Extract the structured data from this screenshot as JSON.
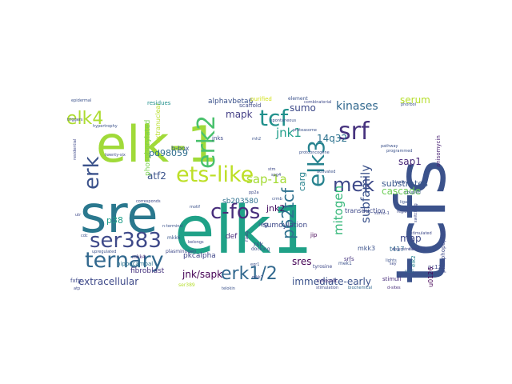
{
  "words": [
    {
      "text": "elk-1",
      "color": "#a0da39"
    },
    {
      "text": "elk1",
      "color": "#1fa187"
    },
    {
      "text": "tcfs",
      "color": "#3b528b"
    },
    {
      "text": "sre",
      "color": "#2a788e"
    },
    {
      "text": "ets-like",
      "color": "#bddf26"
    },
    {
      "text": "ternary",
      "color": "#31688e"
    },
    {
      "text": "ser383",
      "color": "#3e4989"
    },
    {
      "text": "elk4",
      "color": "#addc30"
    },
    {
      "text": "erk2",
      "color": "#4ac16d"
    },
    {
      "text": "tcf",
      "color": "#21918c"
    },
    {
      "text": "srf",
      "color": "#46327e"
    },
    {
      "text": "elk3",
      "color": "#26828e"
    },
    {
      "text": "erk",
      "color": "#3b528b"
    },
    {
      "text": "c-fos",
      "color": "#472d7b"
    },
    {
      "text": "p62tcf",
      "color": "#2d708e"
    },
    {
      "text": "mek",
      "color": "#3e4989"
    },
    {
      "text": "erk1/2",
      "color": "#31688e"
    },
    {
      "text": "mitogen",
      "color": "#35b779"
    },
    {
      "text": "subfamily",
      "color": "#3b528b"
    },
    {
      "text": "sap-1a",
      "color": "#a5db36"
    },
    {
      "text": "jnk1",
      "color": "#1f9e89"
    },
    {
      "text": "kinases",
      "color": "#31688e"
    },
    {
      "text": "mapk",
      "color": "#433e85"
    },
    {
      "text": "jnk/sapk",
      "color": "#440154"
    },
    {
      "text": "extracellular",
      "color": "#3e4989"
    },
    {
      "text": "immediate-early",
      "color": "#3b528b"
    },
    {
      "text": "14q32",
      "color": "#2c728e"
    },
    {
      "text": "serum",
      "color": "#b5de2b"
    },
    {
      "text": "sumo",
      "color": "#3e4a89"
    },
    {
      "text": "cascade",
      "color": "#6ece58"
    },
    {
      "text": "sap1",
      "color": "#482878"
    },
    {
      "text": "sres",
      "color": "#440154"
    },
    {
      "text": "substrates",
      "color": "#38588c"
    },
    {
      "text": "pd98059",
      "color": "#2e6e8e"
    },
    {
      "text": "atf2",
      "color": "#3b528b"
    },
    {
      "text": "p38",
      "color": "#1f9e89"
    },
    {
      "text": "map",
      "color": "#3e4989"
    },
    {
      "text": "jnk2",
      "color": "#471164"
    },
    {
      "text": "carg",
      "color": "#26828e"
    },
    {
      "text": "phosphorylated",
      "color": "#7ad151"
    },
    {
      "text": "extranuclear",
      "color": "#b8de29"
    },
    {
      "text": "sb203580",
      "color": "#2d708e"
    },
    {
      "text": "sumoylation",
      "color": "#3e4989"
    },
    {
      "text": "alphavbeta6",
      "color": "#3b528b"
    },
    {
      "text": "residues",
      "color": "#21908d"
    },
    {
      "text": "scaffold",
      "color": "#3e4a89"
    },
    {
      "text": "element",
      "color": "#3b528b"
    },
    {
      "text": "purified",
      "color": "#d2e21b"
    },
    {
      "text": "transduction",
      "color": "#3e4989"
    },
    {
      "text": "stimuli",
      "color": "#472c7a"
    },
    {
      "text": "phosphopeptide",
      "color": "#3e4989"
    },
    {
      "text": "anisomycin",
      "color": "#482173"
    },
    {
      "text": "pkcalpha",
      "color": "#404688"
    },
    {
      "text": "fibroblast",
      "color": "#46337e"
    },
    {
      "text": "hippocampal",
      "color": "#2c728e"
    },
    {
      "text": "b-box",
      "color": "#39568c"
    },
    {
      "text": "jnks",
      "color": "#3e4989"
    },
    {
      "text": "def",
      "color": "#472c7a"
    },
    {
      "text": "ieg",
      "color": "#3b528b"
    },
    {
      "text": "rsk",
      "color": "#3e4a89"
    },
    {
      "text": "rasg",
      "color": "#443983"
    },
    {
      "text": "jip",
      "color": "#440154"
    },
    {
      "text": "srfs",
      "color": "#46337e"
    },
    {
      "text": "mkk3",
      "color": "#3b528b"
    },
    {
      "text": "t417",
      "color": "#31688e"
    },
    {
      "text": "elk2",
      "color": "#26828e"
    },
    {
      "text": "pc12",
      "color": "#3e4989"
    },
    {
      "text": "u0126",
      "color": "#440154"
    },
    {
      "text": "nd5",
      "color": "#31688e"
    },
    {
      "text": "med23",
      "color": "#3e4989"
    },
    {
      "text": "mek1",
      "color": "#3b528b"
    },
    {
      "text": "mkk4",
      "color": "#472c7a"
    },
    {
      "text": "mkk6",
      "color": "#39568c"
    },
    {
      "text": "ser389",
      "color": "#b5de2b"
    },
    {
      "text": "fxfp",
      "color": "#3e4989"
    },
    {
      "text": "docking",
      "color": "#3b528b"
    },
    {
      "text": "tyrosine",
      "color": "#3e4989"
    },
    {
      "text": "cytosolic",
      "color": "#472c7a"
    },
    {
      "text": "telokin",
      "color": "#3b528b"
    },
    {
      "text": "stimulation",
      "color": "#3e4989"
    },
    {
      "text": "biochemical",
      "color": "#31688e"
    },
    {
      "text": "d-sites",
      "color": "#472c7a"
    },
    {
      "text": "crmb",
      "color": "#3b528b"
    },
    {
      "text": "spg4",
      "color": "#3e4989"
    },
    {
      "text": "egr1",
      "color": "#3b528b"
    },
    {
      "text": "plasminogen",
      "color": "#3e4989"
    },
    {
      "text": "proteasome",
      "color": "#3b528b"
    },
    {
      "text": "combinatorial",
      "color": "#3e4989"
    },
    {
      "text": "protooncogene",
      "color": "#3b528b"
    },
    {
      "text": "twenty-six",
      "color": "#3e4989"
    },
    {
      "text": "n-terminal",
      "color": "#3b528b"
    },
    {
      "text": "residential",
      "color": "#3e4989"
    },
    {
      "text": "leaky",
      "color": "#3b528b"
    },
    {
      "text": "triggers",
      "color": "#3e4989"
    },
    {
      "text": "epidermal",
      "color": "#3b528b"
    },
    {
      "text": "pp2a",
      "color": "#3e4989"
    },
    {
      "text": "mh2",
      "color": "#3b528b"
    },
    {
      "text": "mkk7",
      "color": "#3e4989"
    },
    {
      "text": "hypertrophy",
      "color": "#3b528b"
    },
    {
      "text": "corresponds",
      "color": "#3e4989"
    },
    {
      "text": "upregulated",
      "color": "#3b528b"
    },
    {
      "text": "belongs",
      "color": "#3e4989"
    },
    {
      "text": "motif",
      "color": "#3b528b"
    },
    {
      "text": "stm",
      "color": "#3e4989"
    },
    {
      "text": "programmed",
      "color": "#3b528b"
    },
    {
      "text": "downstream",
      "color": "#3e4989"
    },
    {
      "text": "phorbol",
      "color": "#3b528b"
    },
    {
      "text": "switching",
      "color": "#3e4989"
    },
    {
      "text": "spontaneous",
      "color": "#3b528b"
    },
    {
      "text": "atp",
      "color": "#3e4989"
    },
    {
      "text": "cdc",
      "color": "#3b528b"
    },
    {
      "text": "utr",
      "color": "#3e4989"
    },
    {
      "text": "pathway",
      "color": "#3b528b"
    },
    {
      "text": "sumo-1",
      "color": "#3e4989"
    },
    {
      "text": "activated",
      "color": "#3b528b"
    },
    {
      "text": "sey",
      "color": "#3e4989"
    },
    {
      "text": "lights",
      "color": "#3b528b"
    },
    {
      "text": "region",
      "color": "#3e4989"
    },
    {
      "text": "coupled",
      "color": "#3b528b"
    },
    {
      "text": "stimulated",
      "color": "#3e4989"
    },
    {
      "text": "ligand",
      "color": "#3b528b"
    },
    {
      "text": "sap",
      "color": "#3e4989"
    }
  ]
}
